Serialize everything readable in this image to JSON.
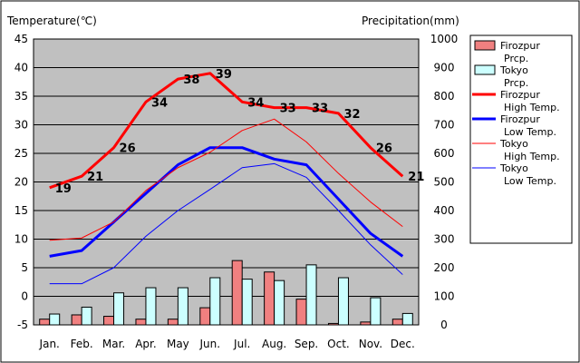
{
  "chart_data": {
    "type": "bar+line",
    "title": "",
    "ylabel_left": "Temperature(℃)",
    "ylabel_right": "Precipitation(mm)",
    "ylim_left": [
      -5,
      45
    ],
    "ylim_right": [
      0,
      1000
    ],
    "yticks_left": [
      "45",
      "40",
      "35",
      "30",
      "25",
      "20",
      "15",
      "10",
      "5",
      "0",
      "-5"
    ],
    "yticks_right": [
      "1000",
      "900",
      "800",
      "700",
      "600",
      "500",
      "400",
      "300",
      "200",
      "100",
      "0"
    ],
    "categories": [
      "Jan.",
      "Feb.",
      "Mar.",
      "Apr.",
      "May",
      "Jun.",
      "Jul.",
      "Aug.",
      "Sep.",
      "Oct.",
      "Nov.",
      "Dec."
    ],
    "grid": true,
    "legend_position": "right",
    "bars": [
      {
        "name": "Firozpur Prcp.",
        "legend": [
          "Firozpur",
          "Prcp."
        ],
        "color": "#f08080",
        "values": [
          20,
          35,
          30,
          20,
          20,
          60,
          225,
          185,
          90,
          5,
          10,
          20
        ]
      },
      {
        "name": "Tokyo Prcp.",
        "legend": [
          "Tokyo",
          "Prcp."
        ],
        "color": "#ccffff",
        "values": [
          38,
          62,
          112,
          130,
          130,
          165,
          160,
          155,
          210,
          165,
          95,
          40
        ]
      }
    ],
    "lines": [
      {
        "name": "Firozpur High Temp.",
        "legend": [
          "Firozpur",
          "High Temp."
        ],
        "color": "#ff0000",
        "width": 3,
        "values": [
          19,
          21,
          26,
          34,
          38,
          39,
          34,
          33,
          33,
          32,
          26,
          21
        ],
        "labels": [
          "19",
          "21",
          "26",
          "34",
          "38",
          "39",
          "34",
          "33",
          "33",
          "32",
          "26",
          "21"
        ]
      },
      {
        "name": "Firozpur Low Temp.",
        "legend": [
          "Firozpur",
          "Low Temp."
        ],
        "color": "#0000ff",
        "width": 3,
        "values": [
          7,
          8,
          13,
          18,
          23,
          26,
          26,
          24,
          23,
          17,
          11,
          7
        ]
      },
      {
        "name": "Tokyo High Temp.",
        "legend": [
          "Tokyo",
          "High Temp."
        ],
        "color": "#ff0000",
        "width": 1,
        "values": [
          9.8,
          10.2,
          13,
          18.5,
          22.5,
          25.2,
          29,
          31,
          27,
          21.5,
          16.5,
          12.2
        ]
      },
      {
        "name": "Tokyo Low Temp.",
        "legend": [
          "Tokyo",
          "Low Temp."
        ],
        "color": "#0000ff",
        "width": 1,
        "values": [
          2.2,
          2.2,
          5,
          10.5,
          15,
          18.7,
          22.5,
          23.2,
          20.8,
          15,
          9,
          3.8
        ]
      }
    ]
  }
}
